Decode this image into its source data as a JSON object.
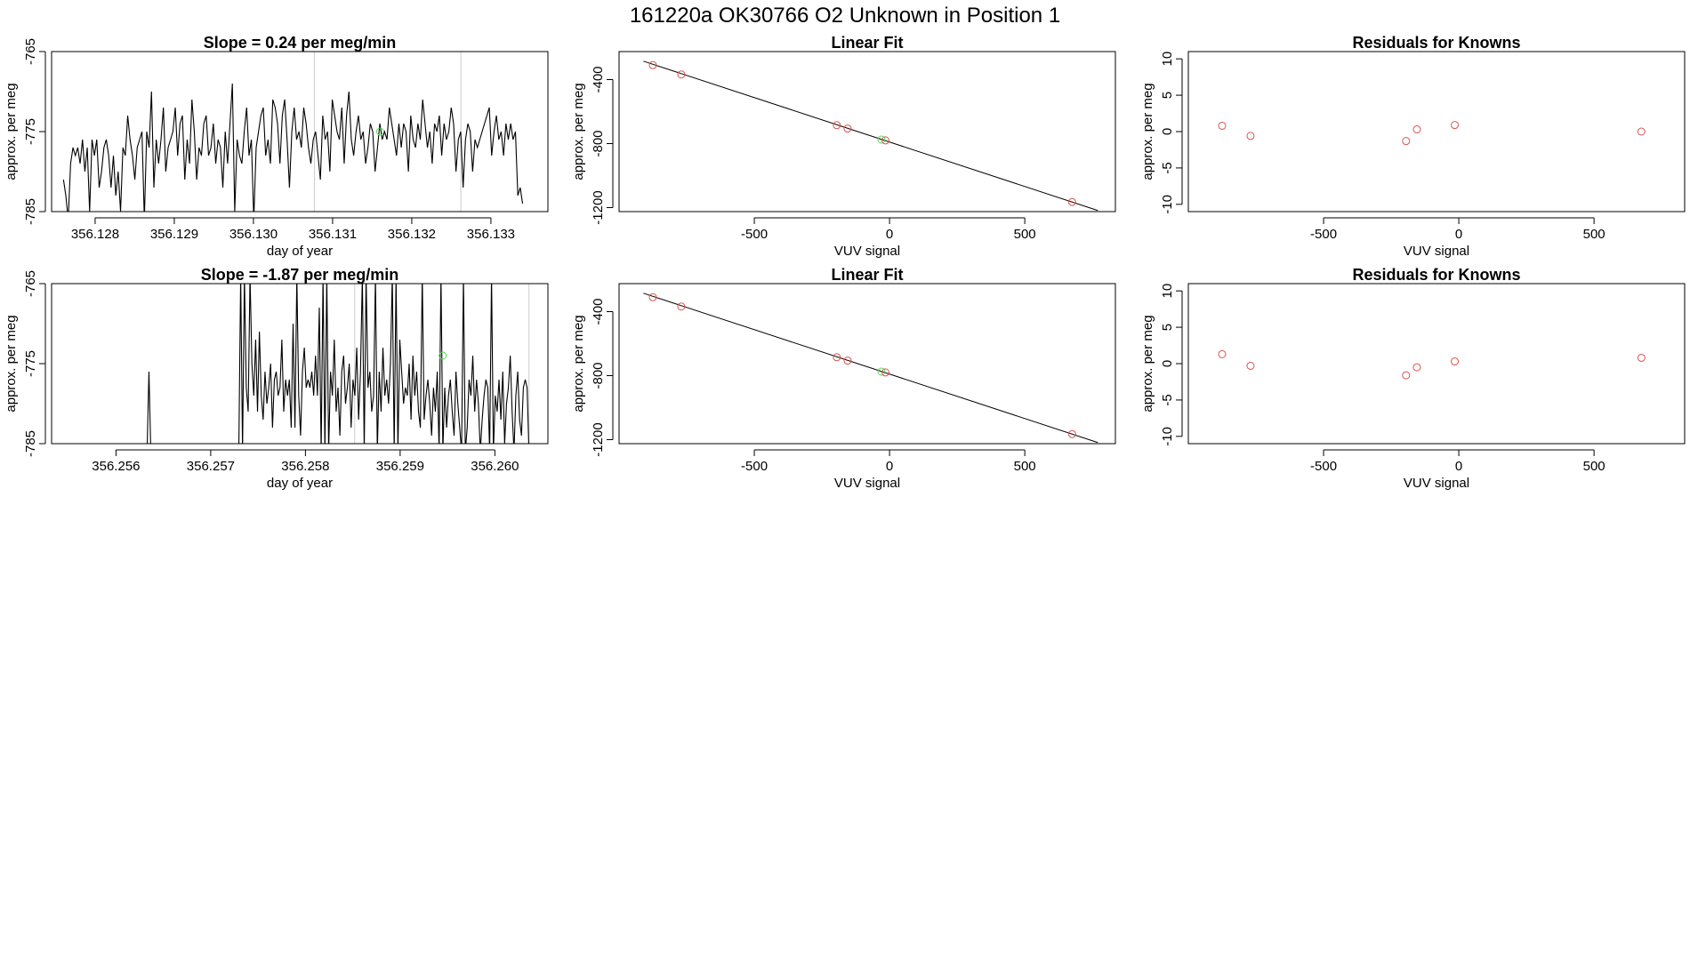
{
  "page_title": "161220a      OK30766   O2 Unknown in Position  1",
  "colors": {
    "known_point": "#d9534f",
    "unknown_point": "#5cd65c",
    "vline": "#cccccc",
    "line": "#000000"
  },
  "chart_data": [
    {
      "id": "ts1",
      "type": "line",
      "title": "Slope =  0.24  per meg/min",
      "xlabel": "day of year",
      "ylabel": "approx. per meg",
      "xlim": [
        356.12745,
        356.13372
      ],
      "ylim": [
        -785,
        -765
      ],
      "xticks": [
        356.128,
        356.129,
        356.13,
        356.131,
        356.132,
        356.133
      ],
      "xtick_labels": [
        "356.128",
        "356.129",
        "356.130",
        "356.131",
        "356.132",
        "356.133"
      ],
      "yticks": [
        -785,
        -775,
        -765
      ],
      "ytick_labels": [
        "-785",
        "-775",
        "-765"
      ],
      "vlines": [
        356.13077,
        356.13262
      ],
      "series": [
        {
          "name": "signal",
          "x_start": 356.1276,
          "x_end": 356.1334,
          "y": [
            -781,
            -783,
            -786,
            -779,
            -777,
            -778,
            -777,
            -779,
            -776,
            -780,
            -777,
            -785,
            -776,
            -778,
            -776,
            -782,
            -780,
            -777,
            -776,
            -778,
            -782,
            -778,
            -783,
            -780,
            -785,
            -777,
            -778,
            -773,
            -776,
            -778,
            -781,
            -777,
            -776,
            -775,
            -786,
            -775,
            -777,
            -770,
            -782,
            -776,
            -779,
            -776,
            -772,
            -780,
            -777,
            -776,
            -775,
            -772,
            -778,
            -774,
            -773,
            -781,
            -776,
            -779,
            -771,
            -775,
            -781,
            -777,
            -778,
            -774,
            -773,
            -778,
            -777,
            -774,
            -779,
            -776,
            -777,
            -782,
            -775,
            -779,
            -774,
            -769,
            -785,
            -776,
            -778,
            -779,
            -775,
            -772,
            -778,
            -776,
            -786,
            -777,
            -775,
            -773,
            -772,
            -778,
            -776,
            -779,
            -771,
            -772,
            -774,
            -779,
            -773,
            -771,
            -776,
            -782,
            -775,
            -772,
            -776,
            -775,
            -777,
            -772,
            -774,
            -777,
            -779,
            -776,
            -775,
            -778,
            -781,
            -773,
            -776,
            -775,
            -780,
            -771,
            -773,
            -775,
            -776,
            -772,
            -779,
            -773,
            -770,
            -776,
            -778,
            -775,
            -773,
            -776,
            -775,
            -779,
            -777,
            -774,
            -775,
            -780,
            -777,
            -774,
            -776,
            -775,
            -776,
            -772,
            -774,
            -776,
            -778,
            -774,
            -777,
            -774,
            -775,
            -780,
            -773,
            -776,
            -777,
            -774,
            -776,
            -771,
            -774,
            -777,
            -775,
            -779,
            -774,
            -775,
            -773,
            -778,
            -774,
            -776,
            -775,
            -772,
            -774,
            -780,
            -776,
            -775,
            -782,
            -776,
            -774,
            -775,
            -780,
            -776,
            -777,
            -776,
            -775,
            -774,
            -773,
            -772,
            -778,
            -775,
            -773,
            -776,
            -775,
            -778,
            -774,
            -776,
            -774,
            -776,
            -775,
            -783,
            -782,
            -784
          ]
        }
      ],
      "markers": [
        {
          "x": 356.1316,
          "y": -775,
          "color": "unknown_point"
        }
      ]
    },
    {
      "id": "ts2",
      "type": "line",
      "title": "Slope =  -1.87  per meg/min",
      "xlabel": "day of year",
      "ylabel": "approx. per meg",
      "xlim": [
        356.25532,
        356.26056
      ],
      "ylim": [
        -785,
        -765
      ],
      "xticks": [
        356.256,
        356.257,
        356.258,
        356.259,
        356.26
      ],
      "xtick_labels": [
        "356.256",
        "356.257",
        "356.258",
        "356.259",
        "356.260"
      ],
      "yticks": [
        -785,
        -775,
        -765
      ],
      "ytick_labels": [
        "-785",
        "-775",
        "-765"
      ],
      "vlines": [
        356.25852,
        356.26036
      ],
      "series": [
        {
          "name": "signal",
          "x_start": 356.25532,
          "x_end": 356.26036,
          "y": [
            -786,
            -786,
            -786,
            -786,
            -786,
            -786,
            -786,
            -786,
            -786,
            -786,
            -786,
            -786,
            -786,
            -786,
            -786,
            -786,
            -786,
            -786,
            -786,
            -786,
            -786,
            -786,
            -786,
            -786,
            -786,
            -786,
            -786,
            -786,
            -786,
            -786,
            -786,
            -786,
            -786,
            -786,
            -786,
            -786,
            -786,
            -786,
            -786,
            -786,
            -786,
            -786,
            -786,
            -786,
            -786,
            -786,
            -786,
            -786,
            -786,
            -786,
            -786,
            -786,
            -776,
            -786,
            -786,
            -786,
            -786,
            -786,
            -786,
            -786,
            -786,
            -786,
            -786,
            -786,
            -786,
            -786,
            -786,
            -786,
            -786,
            -786,
            -786,
            -786,
            -786,
            -786,
            -786,
            -786,
            -786,
            -786,
            -786,
            -786,
            -786,
            -786,
            -786,
            -786,
            -786,
            -786,
            -786,
            -786,
            -786,
            -786,
            -786,
            -786,
            -786,
            -786,
            -786,
            -786,
            -786,
            -786,
            -786,
            -786,
            -786,
            -764,
            -786,
            -764,
            -778,
            -781,
            -764,
            -775,
            -779,
            -772,
            -781,
            -771,
            -779,
            -782,
            -776,
            -780,
            -778,
            -775,
            -783,
            -777,
            -776,
            -779,
            -778,
            -772,
            -781,
            -777,
            -779,
            -777,
            -783,
            -770,
            -783,
            -764,
            -779,
            -784,
            -776,
            -773,
            -778,
            -777,
            -778,
            -776,
            -779,
            -774,
            -779,
            -768,
            -786,
            -764,
            -786,
            -764,
            -786,
            -776,
            -779,
            -772,
            -781,
            -778,
            -784,
            -776,
            -774,
            -780,
            -778,
            -775,
            -783,
            -777,
            -779,
            -773,
            -782,
            -776,
            -764,
            -786,
            -764,
            -778,
            -776,
            -781,
            -779,
            -764,
            -786,
            -776,
            -781,
            -773,
            -779,
            -777,
            -780,
            -775,
            -764,
            -786,
            -764,
            -786,
            -772,
            -776,
            -780,
            -778,
            -779,
            -775,
            -782,
            -774,
            -779,
            -776,
            -781,
            -783,
            -764,
            -782,
            -779,
            -777,
            -780,
            -784,
            -778,
            -781,
            -776,
            -786,
            -764,
            -786,
            -778,
            -783,
            -779,
            -777,
            -781,
            -784,
            -776,
            -780,
            -783,
            -786,
            -764,
            -786,
            -783,
            -777,
            -779,
            -774,
            -781,
            -777,
            -780,
            -786,
            -782,
            -779,
            -777,
            -778,
            -786,
            -764,
            -786,
            -779,
            -781,
            -777,
            -782,
            -776,
            -785,
            -780,
            -778,
            -774,
            -781,
            -786,
            -779,
            -776,
            -782,
            -784,
            -778,
            -777,
            -778,
            -786
          ]
        }
      ],
      "markers": [
        {
          "x": 356.25945,
          "y": -774,
          "color": "unknown_point"
        }
      ]
    },
    {
      "id": "fit1",
      "type": "scatter",
      "title": "Linear Fit",
      "xlabel": "VUV signal",
      "ylabel": "approx. per meg",
      "xlim": [
        -1000,
        835
      ],
      "ylim": [
        -1225,
        -225
      ],
      "xticks": [
        -500,
        0,
        500
      ],
      "xtick_labels": [
        "-500",
        "0",
        "500"
      ],
      "yticks": [
        -1200,
        -800,
        -400
      ],
      "ytick_labels": [
        "-1200",
        "-800",
        "-400"
      ],
      "fit_line": {
        "x1": -910,
        "y1": -285,
        "x2": 770,
        "y2": -1218
      },
      "points": [
        {
          "x": -875,
          "y": -310,
          "color": "known_point"
        },
        {
          "x": -770,
          "y": -368,
          "color": "known_point"
        },
        {
          "x": -195,
          "y": -685,
          "color": "known_point"
        },
        {
          "x": -155,
          "y": -706,
          "color": "known_point"
        },
        {
          "x": -30,
          "y": -775,
          "color": "unknown_point"
        },
        {
          "x": -15,
          "y": -780,
          "color": "known_point"
        },
        {
          "x": 675,
          "y": -1165,
          "color": "known_point"
        }
      ]
    },
    {
      "id": "fit2",
      "type": "scatter",
      "title": "Linear Fit",
      "xlabel": "VUV signal",
      "ylabel": "approx. per meg",
      "xlim": [
        -1000,
        835
      ],
      "ylim": [
        -1225,
        -225
      ],
      "xticks": [
        -500,
        0,
        500
      ],
      "xtick_labels": [
        "-500",
        "0",
        "500"
      ],
      "yticks": [
        -1200,
        -800,
        -400
      ],
      "ytick_labels": [
        "-1200",
        "-800",
        "-400"
      ],
      "fit_line": {
        "x1": -910,
        "y1": -285,
        "x2": 770,
        "y2": -1218
      },
      "points": [
        {
          "x": -875,
          "y": -310,
          "color": "known_point"
        },
        {
          "x": -770,
          "y": -368,
          "color": "known_point"
        },
        {
          "x": -195,
          "y": -685,
          "color": "known_point"
        },
        {
          "x": -155,
          "y": -706,
          "color": "known_point"
        },
        {
          "x": -30,
          "y": -775,
          "color": "unknown_point"
        },
        {
          "x": -15,
          "y": -780,
          "color": "known_point"
        },
        {
          "x": 675,
          "y": -1165,
          "color": "known_point"
        }
      ]
    },
    {
      "id": "res1",
      "type": "scatter",
      "title": "Residuals for Knowns",
      "xlabel": "VUV signal",
      "ylabel": "approx. per meg",
      "xlim": [
        -1000,
        835
      ],
      "ylim": [
        -11,
        11
      ],
      "xticks": [
        -500,
        0,
        500
      ],
      "xtick_labels": [
        "-500",
        "0",
        "500"
      ],
      "yticks": [
        -10,
        -5,
        0,
        5,
        10
      ],
      "ytick_labels": [
        "-10",
        "-5",
        "0",
        "5",
        "10"
      ],
      "points": [
        {
          "x": -875,
          "y": 0.8,
          "color": "known_point"
        },
        {
          "x": -770,
          "y": -0.6,
          "color": "known_point"
        },
        {
          "x": -195,
          "y": -1.3,
          "color": "known_point"
        },
        {
          "x": -155,
          "y": 0.3,
          "color": "known_point"
        },
        {
          "x": -15,
          "y": 0.9,
          "color": "known_point"
        },
        {
          "x": 675,
          "y": 0.0,
          "color": "known_point"
        }
      ]
    },
    {
      "id": "res2",
      "type": "scatter",
      "title": "Residuals for Knowns",
      "xlabel": "VUV signal",
      "ylabel": "approx. per meg",
      "xlim": [
        -1000,
        835
      ],
      "ylim": [
        -11,
        11
      ],
      "xticks": [
        -500,
        0,
        500
      ],
      "xtick_labels": [
        "-500",
        "0",
        "500"
      ],
      "yticks": [
        -10,
        -5,
        0,
        5,
        10
      ],
      "ytick_labels": [
        "-10",
        "-5",
        "0",
        "5",
        "10"
      ],
      "points": [
        {
          "x": -875,
          "y": 1.3,
          "color": "known_point"
        },
        {
          "x": -770,
          "y": -0.3,
          "color": "known_point"
        },
        {
          "x": -195,
          "y": -1.6,
          "color": "known_point"
        },
        {
          "x": -155,
          "y": -0.5,
          "color": "known_point"
        },
        {
          "x": -15,
          "y": 0.3,
          "color": "known_point"
        },
        {
          "x": 675,
          "y": 0.8,
          "color": "known_point"
        }
      ]
    }
  ]
}
